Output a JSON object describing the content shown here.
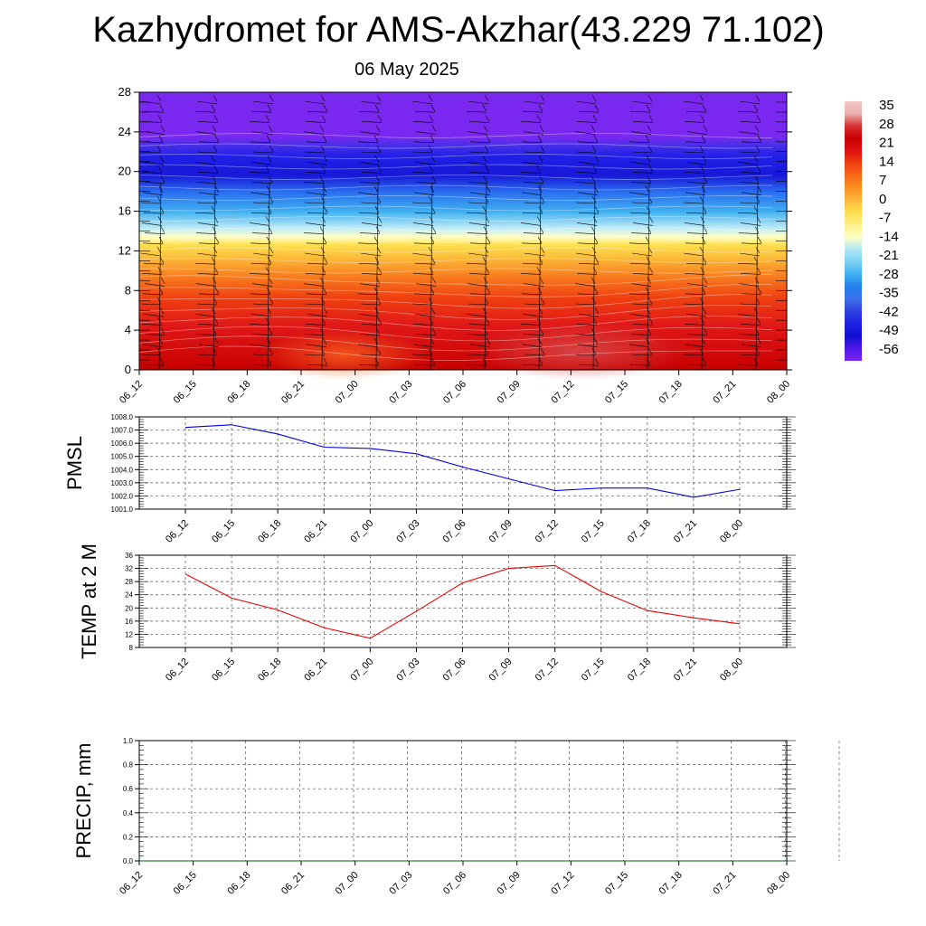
{
  "header": {
    "title": "Kazhydromet for AMS-Akzhar(43.229 71.102)",
    "subtitle": "06 May 2025"
  },
  "chart_data": [
    {
      "type": "heatmap",
      "title": "",
      "xlabel": "",
      "ylabel": "",
      "x_ticks": [
        "06_12",
        "06_15",
        "06_18",
        "06_21",
        "07_00",
        "07_03",
        "07_06",
        "07_09",
        "07_12",
        "07_15",
        "07_18",
        "07_21",
        "08_00"
      ],
      "y_ticks": [
        0,
        4,
        8,
        12,
        16,
        20,
        24,
        28
      ],
      "ylim": [
        0,
        28
      ],
      "overlay": "wind barbs",
      "colorbar": {
        "labels": [
          "35",
          "28",
          "21",
          "14",
          "7",
          "0",
          "-7",
          "-14",
          "-21",
          "-28",
          "-35",
          "-42",
          "-49",
          "-56"
        ],
        "colors": [
          "#f4c8c8",
          "#e8b0b0",
          "#d83030",
          "#c80000",
          "#e01010",
          "#f04010",
          "#f86818",
          "#fb9020",
          "#fcb838",
          "#fde050",
          "#fff088",
          "#ffffc8",
          "#b0e8f8",
          "#78d0f0",
          "#40b0f0",
          "#2080f0",
          "#4070e8",
          "#3040e0",
          "#2020e8",
          "#1010d0",
          "#5018e8",
          "#7a28f0"
        ],
        "range": [
          -56,
          35
        ]
      }
    },
    {
      "type": "line",
      "title": "",
      "xlabel": "",
      "ylabel": "PMSL",
      "x": [
        "06_12",
        "06_15",
        "06_18",
        "06_21",
        "07_00",
        "07_03",
        "07_06",
        "07_09",
        "07_12",
        "07_15",
        "07_18",
        "07_21",
        "08_00"
      ],
      "ylim": [
        1001,
        1008
      ],
      "y_ticks": [
        "1001.0",
        "1002.0",
        "1003.0",
        "1004.0",
        "1005.0",
        "1006.0",
        "1007.0",
        "1008.0"
      ],
      "grid": true,
      "color": "#0000ee",
      "values": [
        1007.2,
        1007.4,
        1006.7,
        1005.7,
        1005.6,
        1005.2,
        1004.2,
        1003.3,
        1002.4,
        1002.6,
        1002.6,
        1001.9,
        1002.5
      ]
    },
    {
      "type": "line",
      "title": "",
      "xlabel": "",
      "ylabel": "TEMP at 2 M",
      "x": [
        "06_12",
        "06_15",
        "06_18",
        "06_21",
        "07_00",
        "07_03",
        "07_06",
        "07_09",
        "07_12",
        "07_15",
        "07_18",
        "07_21",
        "08_00"
      ],
      "ylim": [
        8,
        36
      ],
      "y_ticks": [
        "8",
        "12",
        "16",
        "20",
        "24",
        "28",
        "32",
        "36"
      ],
      "grid": true,
      "color": "#ee0000",
      "values": [
        30.3,
        23.0,
        19.4,
        14.0,
        10.8,
        19.0,
        27.6,
        32.0,
        32.9,
        25.0,
        19.2,
        17.0,
        15.2
      ]
    },
    {
      "type": "line",
      "title": "",
      "xlabel": "",
      "ylabel": "PRECIP, mm",
      "x": [
        "06_12",
        "06_15",
        "06_18",
        "06_21",
        "07_00",
        "07_03",
        "07_06",
        "07_09",
        "07_12",
        "07_15",
        "07_18",
        "07_21",
        "08_00"
      ],
      "ylim": [
        0,
        1
      ],
      "y_ticks": [
        "0.0",
        "0.2",
        "0.4",
        "0.6",
        "0.8",
        "1.0"
      ],
      "grid": true,
      "color": "#006400",
      "values": [
        0,
        0,
        0,
        0,
        0,
        0,
        0,
        0,
        0,
        0,
        0,
        0,
        0
      ]
    }
  ]
}
